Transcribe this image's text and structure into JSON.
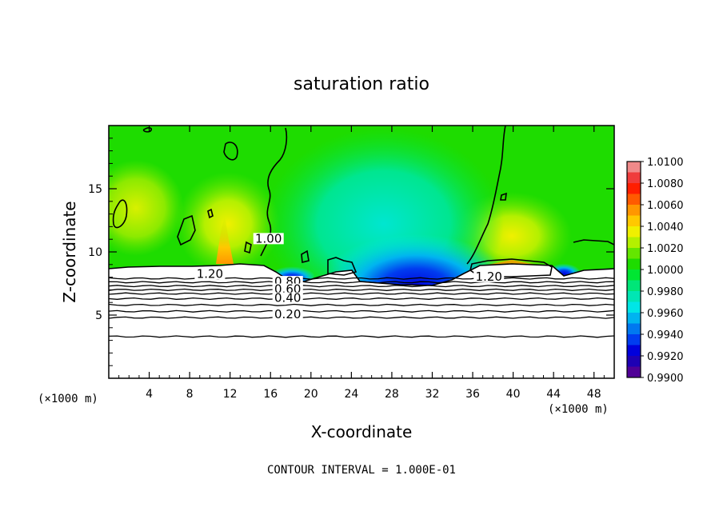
{
  "chart_data": {
    "type": "heatmap",
    "title": "saturation ratio",
    "xlabel": "X-coordinate",
    "ylabel": "Z-coordinate",
    "x_unit": "(×1000 m)",
    "z_unit": "(×1000 m)",
    "footer": "CONTOUR INTERVAL = 1.000E-01",
    "xlim": [
      0,
      50
    ],
    "ylim": [
      0,
      20
    ],
    "x_ticks": [
      "4",
      "8",
      "12",
      "16",
      "20",
      "24",
      "28",
      "32",
      "36",
      "40",
      "44",
      "48"
    ],
    "x_tick_values": [
      4,
      8,
      12,
      16,
      20,
      24,
      28,
      32,
      36,
      40,
      44,
      48
    ],
    "y_ticks": [
      "5",
      "10",
      "15"
    ],
    "y_tick_values": [
      5,
      10,
      15
    ],
    "colorbar": {
      "labels": [
        "1.0100",
        "1.0080",
        "1.0060",
        "1.0040",
        "1.0020",
        "1.0000",
        "0.9980",
        "0.9960",
        "0.9940",
        "0.9920",
        "0.9900"
      ],
      "bands": [
        {
          "from": 1.009,
          "to": 1.01,
          "color": "#f08a8a"
        },
        {
          "from": 1.008,
          "to": 1.009,
          "color": "#f03c3c"
        },
        {
          "from": 1.007,
          "to": 1.008,
          "color": "#ff1e00"
        },
        {
          "from": 1.006,
          "to": 1.007,
          "color": "#ff5a00"
        },
        {
          "from": 1.005,
          "to": 1.006,
          "color": "#ff9600"
        },
        {
          "from": 1.004,
          "to": 1.005,
          "color": "#ffc800"
        },
        {
          "from": 1.003,
          "to": 1.004,
          "color": "#f0f000"
        },
        {
          "from": 1.002,
          "to": 1.003,
          "color": "#b4f000"
        },
        {
          "from": 1.001,
          "to": 1.002,
          "color": "#64e600"
        },
        {
          "from": 1.0,
          "to": 1.001,
          "color": "#1edc00"
        },
        {
          "from": 0.999,
          "to": 1.0,
          "color": "#00e632"
        },
        {
          "from": 0.998,
          "to": 0.999,
          "color": "#00e678"
        },
        {
          "from": 0.997,
          "to": 0.998,
          "color": "#00e6b4"
        },
        {
          "from": 0.996,
          "to": 0.997,
          "color": "#00e6e6"
        },
        {
          "from": 0.995,
          "to": 0.996,
          "color": "#00b4f0"
        },
        {
          "from": 0.994,
          "to": 0.995,
          "color": "#0078f0"
        },
        {
          "from": 0.993,
          "to": 0.994,
          "color": "#003cf0"
        },
        {
          "from": 0.992,
          "to": 0.993,
          "color": "#0000dc"
        },
        {
          "from": 0.991,
          "to": 0.992,
          "color": "#1e00b4"
        },
        {
          "from": 0.99,
          "to": 0.991,
          "color": "#500096"
        }
      ]
    },
    "contour_labels": [
      {
        "text": "1.00",
        "x": 15.8,
        "z": 10.8
      },
      {
        "text": "1.20",
        "x": 10.0,
        "z": 8.0
      },
      {
        "text": "1.20",
        "x": 37.6,
        "z": 7.8
      },
      {
        "text": "0.80",
        "x": 17.7,
        "z": 7.4
      },
      {
        "text": "0.60",
        "x": 17.7,
        "z": 6.8
      },
      {
        "text": "0.40",
        "x": 17.7,
        "z": 6.1
      },
      {
        "text": "0.20",
        "x": 17.7,
        "z": 4.8
      }
    ],
    "contour_levels_z": [
      3.3,
      4.8,
      5.3,
      5.8,
      6.3,
      6.7,
      7.0,
      7.3,
      7.6,
      7.9
    ]
  }
}
